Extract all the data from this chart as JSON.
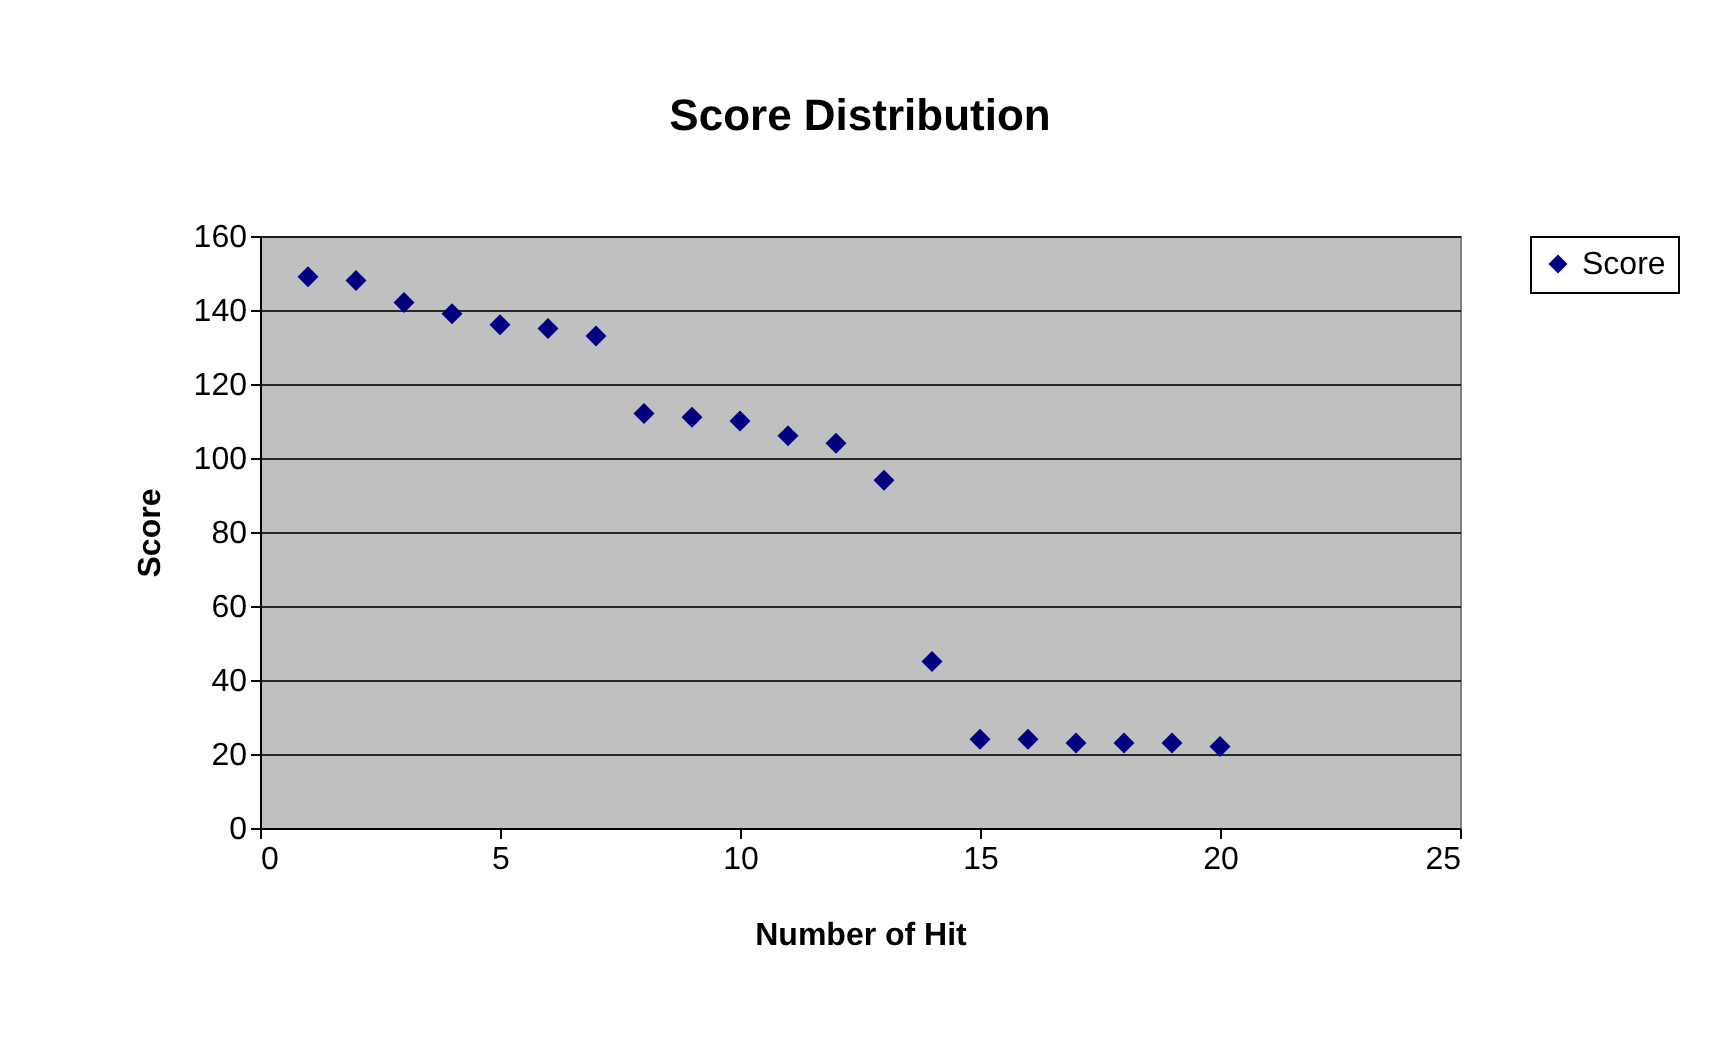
{
  "chart_data": {
    "type": "scatter",
    "title": "Score Distribution",
    "xlabel": "Number of Hit",
    "ylabel": "Score",
    "x": [
      1,
      2,
      3,
      4,
      5,
      6,
      7,
      8,
      9,
      10,
      11,
      12,
      13,
      14,
      15,
      16,
      17,
      18,
      19,
      20
    ],
    "series": [
      {
        "name": "Score",
        "color": "#000080",
        "values": [
          149,
          148,
          142,
          139,
          136,
          135,
          133,
          112,
          111,
          110,
          106,
          104,
          94,
          45,
          24,
          24,
          23,
          23,
          23,
          22
        ]
      }
    ],
    "xlim": [
      0,
      25
    ],
    "xticks": [
      0,
      5,
      10,
      15,
      20,
      25
    ],
    "ylim": [
      0,
      160
    ],
    "yticks": [
      0,
      20,
      40,
      60,
      80,
      100,
      120,
      140,
      160
    ],
    "grid": "y",
    "legend": "right",
    "marker": "diamond"
  }
}
